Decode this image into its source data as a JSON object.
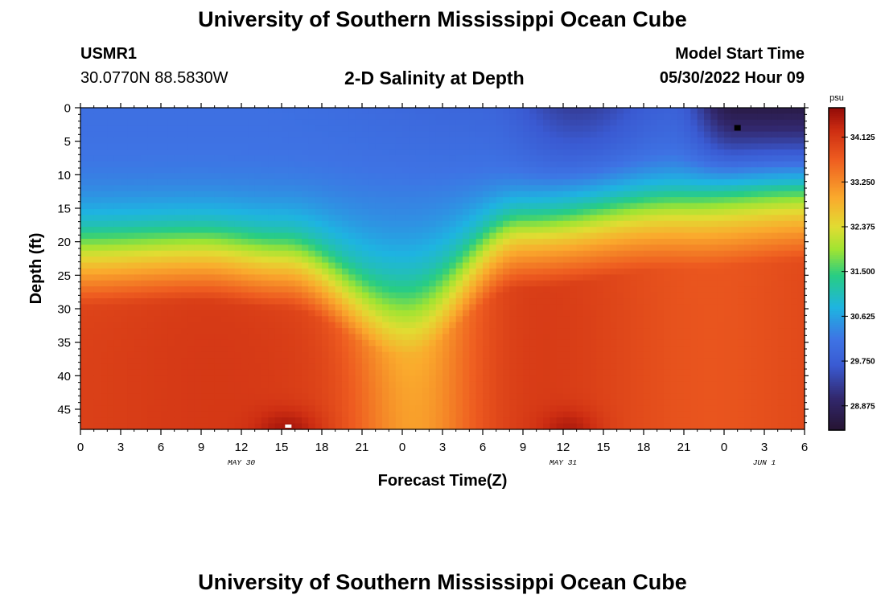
{
  "header": {
    "title": "University of Southern Mississippi Ocean Cube",
    "station_id": "USMR1",
    "station_coords": "30.0770N  88.5830W",
    "subtitle": "2-D Salinity at Depth",
    "model_start_label": "Model Start Time",
    "model_start_value": "05/30/2022 Hour 09"
  },
  "footer": {
    "title": "University of Southern Mississippi Ocean Cube"
  },
  "chart_data": {
    "type": "heatmap",
    "title": "2-D Salinity at Depth",
    "xlabel": "Forecast Time(Z)",
    "ylabel": "Depth (ft)",
    "x_range_hours": [
      0,
      54
    ],
    "y_range_ft": [
      0,
      48
    ],
    "x_tick_labels": [
      "0",
      "3",
      "6",
      "9",
      "12",
      "15",
      "18",
      "21",
      "0",
      "3",
      "6",
      "9",
      "12",
      "15",
      "18",
      "21",
      "0",
      "3",
      "6"
    ],
    "y_ticks": [
      0,
      5,
      10,
      15,
      20,
      25,
      30,
      35,
      40,
      45
    ],
    "date_labels": [
      {
        "label": "MAY 30",
        "hour": 12
      },
      {
        "label": "MAY 31",
        "hour": 36
      },
      {
        "label": "JUN 1",
        "hour": 51
      }
    ],
    "colorbar": {
      "unit": "psu",
      "range": [
        28.4,
        34.7
      ],
      "ticks": [
        "34.125",
        "33.250",
        "32.375",
        "31.500",
        "30.625",
        "29.750",
        "28.875"
      ]
    },
    "markers": [
      {
        "hour": 49.0,
        "depth_ft": 3.0,
        "color": "#000000"
      },
      {
        "hour": 15.5,
        "depth_ft": 47.7,
        "color": "#ffffff"
      }
    ],
    "surface_salinity_min": [
      {
        "hour": 0,
        "psu": 30.1
      },
      {
        "hour": 12,
        "psu": 30.1
      },
      {
        "hour": 30,
        "psu": 29.9
      },
      {
        "hour": 37,
        "psu": 29.3
      },
      {
        "hour": 44,
        "psu": 29.8
      },
      {
        "hour": 49,
        "psu": 28.6
      }
    ],
    "halocline_depth_ft": [
      {
        "hour": 0,
        "depth": 17.5
      },
      {
        "hour": 9,
        "depth": 17
      },
      {
        "hour": 15,
        "depth": 18
      },
      {
        "hour": 24,
        "depth": 25
      },
      {
        "hour": 33,
        "depth": 15
      },
      {
        "hour": 45,
        "depth": 12
      },
      {
        "hour": 54,
        "depth": 11
      }
    ]
  }
}
